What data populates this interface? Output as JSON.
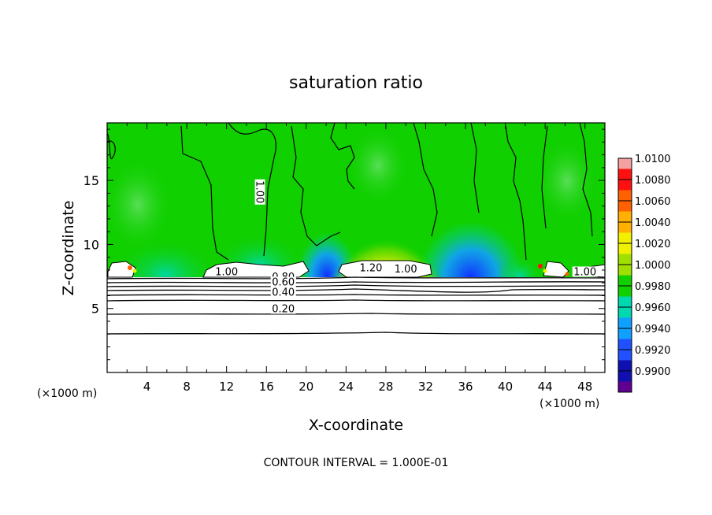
{
  "chart_data": {
    "type": "heatmap",
    "title": "saturation ratio",
    "xlabel": "X-coordinate",
    "ylabel": "Z-coordinate",
    "x_unit_label": "(×1000 m)",
    "y_unit_label": "(×1000 m)",
    "xlim": [
      0,
      50
    ],
    "ylim": [
      0,
      19.5
    ],
    "x_ticks": [
      "4",
      "8",
      "12",
      "16",
      "20",
      "24",
      "28",
      "32",
      "36",
      "40",
      "44",
      "48"
    ],
    "y_ticks": [
      "5",
      "10",
      "15"
    ],
    "colorbar_levels": [
      "1.0100",
      "1.0080",
      "1.0060",
      "1.0040",
      "1.0020",
      "1.0000",
      "0.9980",
      "0.9960",
      "0.9940",
      "0.9920",
      "0.9900"
    ],
    "colorbar_colors": [
      "#f4a0a0",
      "#ff1010",
      "#ff6000",
      "#ffb000",
      "#f0f000",
      "#a0e000",
      "#10d000",
      "#00d8b0",
      "#10a0ff",
      "#2050ff",
      "#1010b0",
      "#600090"
    ],
    "contour_labels": [
      {
        "text": "1.00",
        "x": 12.0,
        "y": 7.6
      },
      {
        "text": "1.00",
        "x": 15.0,
        "y": 14.1,
        "rotate": 90
      },
      {
        "text": "1.20",
        "x": 26.5,
        "y": 7.9
      },
      {
        "text": "1.00",
        "x": 30.0,
        "y": 7.8
      },
      {
        "text": "1.00",
        "x": 48.0,
        "y": 7.6
      },
      {
        "text": "0.80",
        "x": 17.7,
        "y": 7.2
      },
      {
        "text": "0.60",
        "x": 17.7,
        "y": 6.8
      },
      {
        "text": "0.40",
        "x": 17.7,
        "y": 6.0
      },
      {
        "text": "0.20",
        "x": 17.7,
        "y": 4.7
      }
    ],
    "footer": "CONTOUR INTERVAL = 1.000E-01"
  }
}
